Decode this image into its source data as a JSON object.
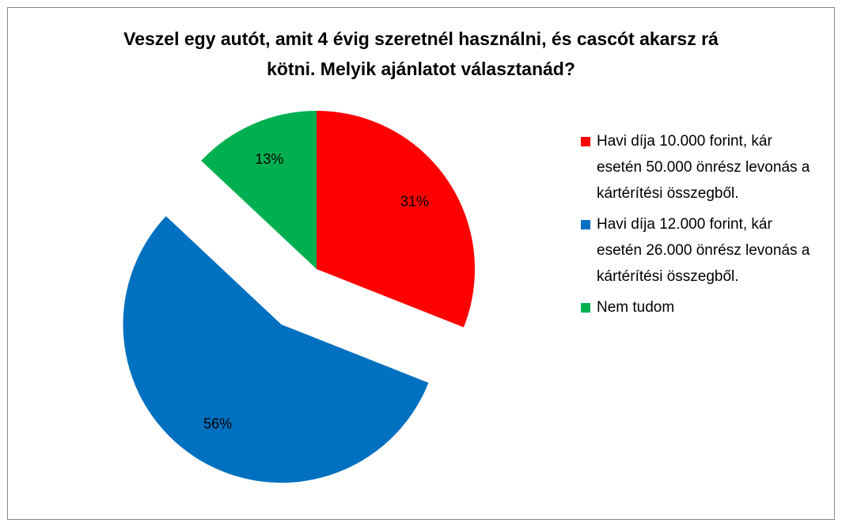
{
  "chart_data": {
    "type": "pie",
    "title": "Veszel egy autót, amit 4 évig szeretnél használni, és cascót akarsz rá kötni. Melyik ajánlatot választanád?",
    "categories": [
      "Havi díja 10.000 forint, kár esetén 50.000 önrész levonás a kártérítési összegből.",
      "Havi díja 12.000 forint, kár esetén 26.000 önrész levonás a kártérítési összegből.",
      "Nem tudom"
    ],
    "values": [
      31,
      56,
      13
    ],
    "value_labels": [
      "31%",
      "56%",
      "13%"
    ],
    "colors": [
      "#ff0000",
      "#0070c0",
      "#00b050"
    ],
    "legend": "right"
  }
}
